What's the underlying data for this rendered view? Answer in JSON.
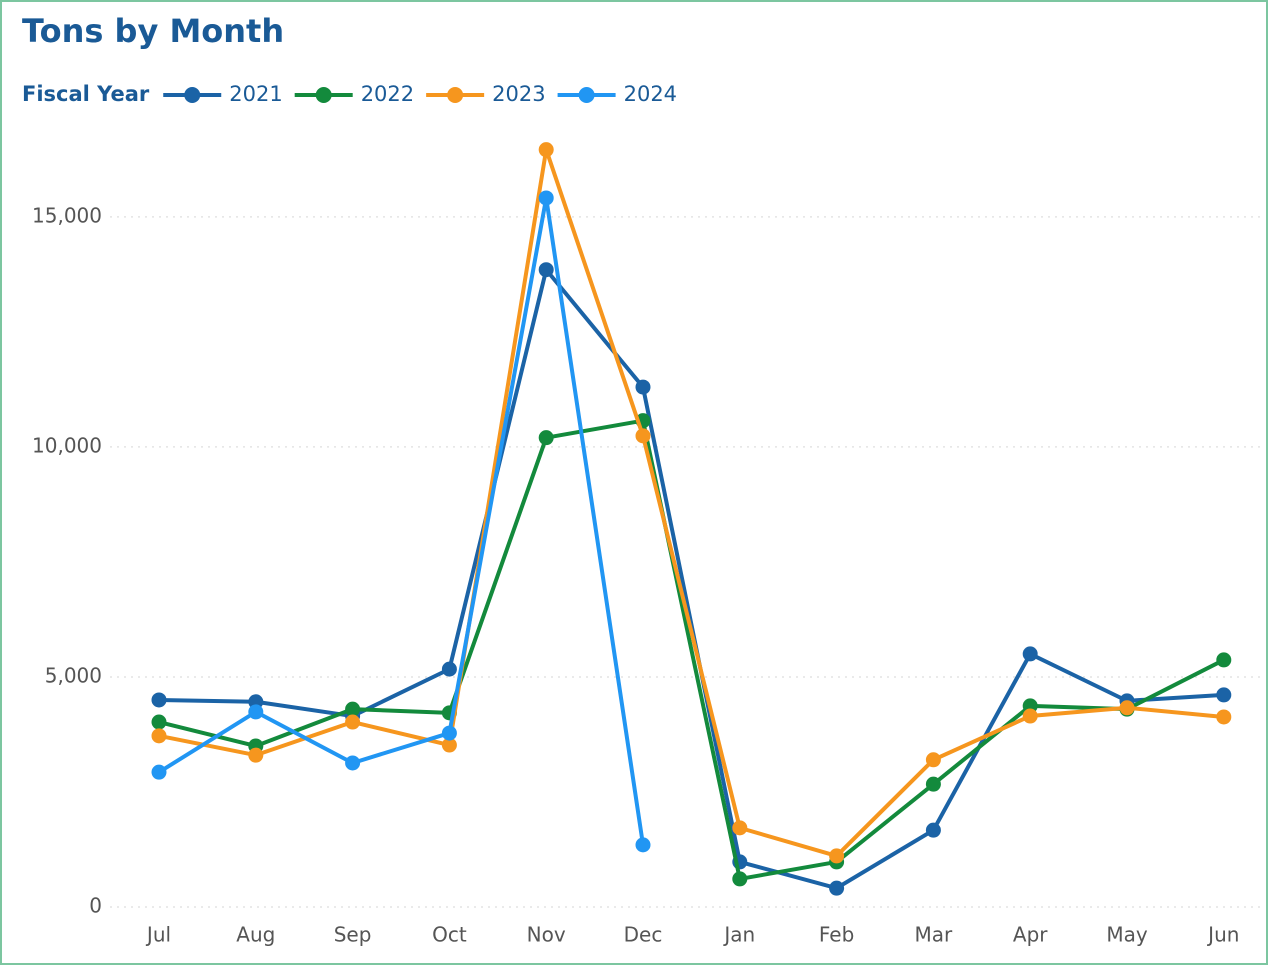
{
  "chart_data": {
    "type": "line",
    "title": "Tons by Month",
    "legend_title": "Fiscal Year",
    "categories": [
      "Jul",
      "Aug",
      "Sep",
      "Oct",
      "Nov",
      "Dec",
      "Jan",
      "Feb",
      "Mar",
      "Apr",
      "May",
      "Jun"
    ],
    "series": [
      {
        "name": "2021",
        "color": "#1b63a6",
        "values": [
          4500,
          4460,
          4150,
          5170,
          13850,
          11300,
          980,
          410,
          1670,
          5500,
          4480,
          4610
        ]
      },
      {
        "name": "2022",
        "color": "#138a3c",
        "values": [
          4020,
          3500,
          4300,
          4220,
          10200,
          10570,
          610,
          980,
          2670,
          4370,
          4300,
          5370
        ]
      },
      {
        "name": "2023",
        "color": "#f6961e",
        "values": [
          3720,
          3300,
          4020,
          3520,
          16460,
          10240,
          1720,
          1110,
          3200,
          4150,
          4330,
          4130
        ]
      },
      {
        "name": "2024",
        "color": "#2196f3",
        "values": [
          2930,
          4240,
          3130,
          3780,
          15410,
          1350,
          null,
          null,
          null,
          null,
          null,
          null
        ]
      }
    ],
    "ylim": [
      0,
      16800
    ],
    "yticks": [
      0,
      {
        "value": 5000,
        "label": "5,000"
      },
      {
        "value": 10000,
        "label": "10,000"
      },
      {
        "value": 15000,
        "label": "15,000"
      }
    ],
    "grid": true
  }
}
